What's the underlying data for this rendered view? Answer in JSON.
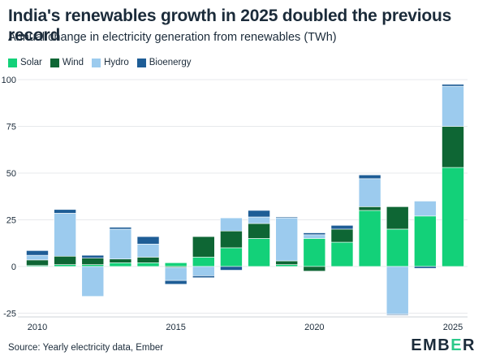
{
  "title": "India's renewables growth in 2025 doubled the previous record",
  "subtitle": "Annual change in electricity generation from renewables (TWh)",
  "source": "Source: Yearly electricity data, Ember",
  "logo": {
    "left": "EMB",
    "mid": "E",
    "right": "R"
  },
  "colors": {
    "solar": "#13d179",
    "wind": "#0e6634",
    "hydro": "#9ccbee",
    "bioenergy": "#1e5d96",
    "grid": "#e7e9ec",
    "axis_text": "#1b2b3a"
  },
  "chart_data": {
    "type": "bar",
    "stacked": true,
    "title": "India's renewables growth in 2025 doubled the previous record",
    "ylabel": "Annual change in electricity generation from renewables (TWh)",
    "ylim": [
      -27,
      100
    ],
    "yticks": [
      -25,
      0,
      25,
      50,
      75,
      100
    ],
    "xticks": [
      2010,
      2015,
      2020,
      2025
    ],
    "legend_position": "top-left",
    "grid": true,
    "categories": [
      2010,
      2011,
      2012,
      2013,
      2014,
      2015,
      2016,
      2017,
      2018,
      2019,
      2020,
      2021,
      2022,
      2023,
      2024,
      2025
    ],
    "series": [
      {
        "name": "Solar",
        "key": "solar",
        "values": [
          0.5,
          1,
          1,
          2,
          2,
          2,
          5,
          10,
          15,
          1,
          15,
          13,
          30,
          20,
          27,
          53
        ]
      },
      {
        "name": "Wind",
        "key": "wind",
        "values": [
          3,
          4.5,
          3.5,
          2,
          3,
          -0.5,
          11,
          9,
          8,
          2,
          -2.5,
          7,
          2,
          12,
          0,
          22
        ]
      },
      {
        "name": "Hydro",
        "key": "hydro",
        "values": [
          2.5,
          23,
          -16,
          16,
          7,
          -7,
          -5,
          7,
          3.5,
          23,
          2,
          0,
          15,
          -25.5,
          8,
          21.5
        ]
      },
      {
        "name": "Bioenergy",
        "key": "bioenergy",
        "values": [
          2.5,
          2,
          1.5,
          1,
          4,
          -2,
          -1,
          -2,
          3.5,
          0.5,
          1,
          2,
          2,
          -0.5,
          -1,
          1
        ]
      }
    ]
  }
}
